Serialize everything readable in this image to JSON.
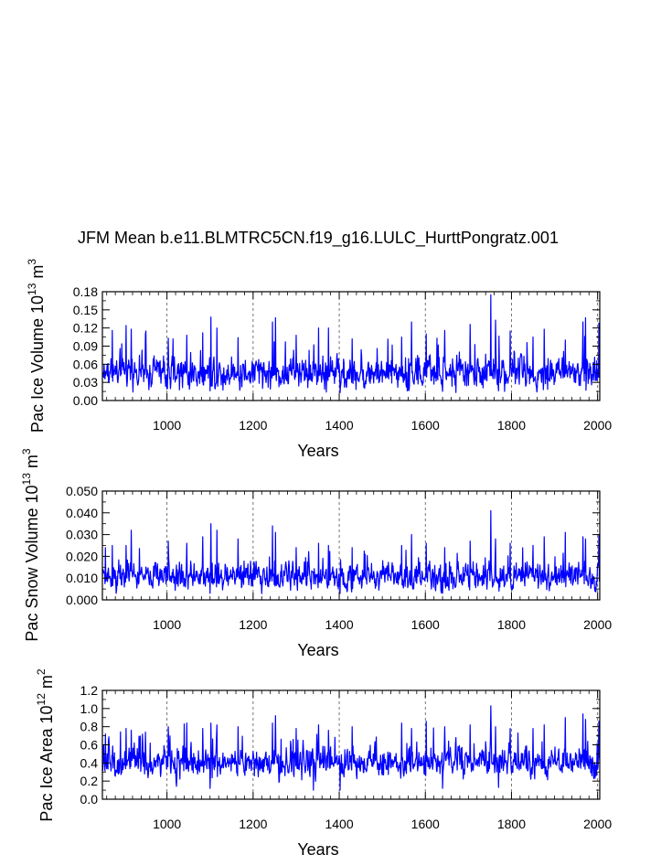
{
  "title": "JFM Mean b.e11.BLMTRC5CN.f19_g16.LULC_HurttPongratz.001",
  "colors": {
    "series": "#0000ff",
    "axis": "#000000",
    "grid": "#555555",
    "background": "#ffffff"
  },
  "chart_data": [
    {
      "type": "line",
      "ylabel": "Pac Ice Volume 10",
      "ylabel_exponent": "13",
      "ylabel_unit": "m",
      "ylabel_unit_exponent": "3",
      "xlabel": "Years",
      "xlim": [
        850,
        2005
      ],
      "ylim": [
        0,
        0.18
      ],
      "xticks": [
        1000,
        1200,
        1400,
        1600,
        1800,
        2000
      ],
      "xtick_labels": [
        "1000",
        "1200",
        "1400",
        "1600",
        "1800",
        "2000"
      ],
      "yticks": [
        0,
        0.03,
        0.06,
        0.09,
        0.12,
        0.15,
        0.18
      ],
      "ytick_labels": [
        "0.00",
        "0.03",
        "0.06",
        "0.09",
        "0.12",
        "0.15",
        "0.18"
      ],
      "vgrid": [
        1000,
        1200,
        1400,
        1600,
        1800,
        2000
      ],
      "series": [
        {
          "name": "Pac Ice Volume",
          "x_start": 850,
          "x_end": 2005,
          "baseline": 0.045,
          "spread": 0.02,
          "min": 0.013,
          "peaks": [
            [
              873,
              0.116
            ],
            [
              905,
              0.124
            ],
            [
              917,
              0.118
            ],
            [
              950,
              0.11
            ],
            [
              1003,
              0.103
            ],
            [
              1046,
              0.108
            ],
            [
              1083,
              0.112
            ],
            [
              1102,
              0.138
            ],
            [
              1116,
              0.12
            ],
            [
              1165,
              0.104
            ],
            [
              1245,
              0.13
            ],
            [
              1252,
              0.137
            ],
            [
              1300,
              0.108
            ],
            [
              1352,
              0.12
            ],
            [
              1375,
              0.12
            ],
            [
              1430,
              0.102
            ],
            [
              1545,
              0.105
            ],
            [
              1568,
              0.13
            ],
            [
              1602,
              0.11
            ],
            [
              1645,
              0.116
            ],
            [
              1704,
              0.126
            ],
            [
              1752,
              0.175
            ],
            [
              1763,
              0.133
            ],
            [
              1797,
              0.115
            ],
            [
              1850,
              0.105
            ],
            [
              1876,
              0.118
            ],
            [
              1925,
              0.1
            ],
            [
              1966,
              0.13
            ],
            [
              1972,
              0.137
            ],
            [
              2003,
              0.128
            ]
          ],
          "dips": [
            [
              1100,
              0.016
            ],
            [
              1370,
              0.014
            ],
            [
              1402,
              0.013
            ],
            [
              1640,
              0.015
            ],
            [
              1770,
              0.016
            ]
          ]
        }
      ]
    },
    {
      "type": "line",
      "ylabel": "Pac Snow Volume 10",
      "ylabel_exponent": "13",
      "ylabel_unit": "m",
      "ylabel_unit_exponent": "3",
      "xlabel": "Years",
      "xlim": [
        850,
        2005
      ],
      "ylim": [
        0,
        0.05
      ],
      "xticks": [
        1000,
        1200,
        1400,
        1600,
        1800,
        2000
      ],
      "xtick_labels": [
        "1000",
        "1200",
        "1400",
        "1600",
        "1800",
        "2000"
      ],
      "yticks": [
        0,
        0.01,
        0.02,
        0.03,
        0.04,
        0.05
      ],
      "ytick_labels": [
        "0.000",
        "0.010",
        "0.020",
        "0.030",
        "0.040",
        "0.050"
      ],
      "vgrid": [
        1000,
        1200,
        1400,
        1600,
        1800,
        2000
      ],
      "series": [
        {
          "name": "Pac Snow Volume",
          "x_start": 850,
          "x_end": 2005,
          "baseline": 0.0105,
          "spread": 0.0045,
          "min": 0.0025,
          "peaks": [
            [
              857,
              0.024
            ],
            [
              873,
              0.025
            ],
            [
              905,
              0.025
            ],
            [
              917,
              0.032
            ],
            [
              1003,
              0.027
            ],
            [
              1046,
              0.026
            ],
            [
              1083,
              0.029
            ],
            [
              1102,
              0.035
            ],
            [
              1116,
              0.032
            ],
            [
              1165,
              0.028
            ],
            [
              1245,
              0.034
            ],
            [
              1252,
              0.031
            ],
            [
              1300,
              0.024
            ],
            [
              1352,
              0.026
            ],
            [
              1375,
              0.025
            ],
            [
              1430,
              0.024
            ],
            [
              1545,
              0.025
            ],
            [
              1568,
              0.03
            ],
            [
              1602,
              0.026
            ],
            [
              1645,
              0.024
            ],
            [
              1704,
              0.027
            ],
            [
              1752,
              0.041
            ],
            [
              1763,
              0.028
            ],
            [
              1797,
              0.026
            ],
            [
              1850,
              0.025
            ],
            [
              1876,
              0.029
            ],
            [
              1925,
              0.031
            ],
            [
              1966,
              0.029
            ],
            [
              1972,
              0.028
            ],
            [
              2003,
              0.03
            ]
          ],
          "dips": [
            [
              1100,
              0.003
            ],
            [
              1402,
              0.003
            ],
            [
              1640,
              0.003
            ]
          ]
        }
      ]
    },
    {
      "type": "line",
      "ylabel": "Pac Ice Area 10",
      "ylabel_exponent": "12",
      "ylabel_unit": "m",
      "ylabel_unit_exponent": "2",
      "xlabel": "Years",
      "xlim": [
        850,
        2005
      ],
      "ylim": [
        0,
        1.2
      ],
      "xticks": [
        1000,
        1200,
        1400,
        1600,
        1800,
        2000
      ],
      "xtick_labels": [
        "1000",
        "1200",
        "1400",
        "1600",
        "1800",
        "2000"
      ],
      "yticks": [
        0,
        0.2,
        0.4,
        0.6,
        0.8,
        1.0,
        1.2
      ],
      "ytick_labels": [
        "0.0",
        "0.2",
        "0.4",
        "0.6",
        "0.8",
        "1.0",
        "1.2"
      ],
      "vgrid": [
        1000,
        1200,
        1400,
        1600,
        1800,
        2000
      ],
      "series": [
        {
          "name": "Pac Ice Area",
          "x_start": 850,
          "x_end": 2005,
          "baseline": 0.4,
          "spread": 0.12,
          "min": 0.1,
          "peaks": [
            [
              857,
              0.72
            ],
            [
              905,
              0.78
            ],
            [
              917,
              0.76
            ],
            [
              950,
              0.74
            ],
            [
              1003,
              0.8
            ],
            [
              1040,
              0.83
            ],
            [
              1046,
              0.84
            ],
            [
              1083,
              0.78
            ],
            [
              1102,
              0.84
            ],
            [
              1116,
              0.82
            ],
            [
              1165,
              0.8
            ],
            [
              1245,
              0.84
            ],
            [
              1252,
              0.92
            ],
            [
              1300,
              0.78
            ],
            [
              1352,
              0.82
            ],
            [
              1375,
              0.76
            ],
            [
              1430,
              0.8
            ],
            [
              1545,
              0.84
            ],
            [
              1568,
              0.78
            ],
            [
              1602,
              0.86
            ],
            [
              1645,
              0.8
            ],
            [
              1704,
              0.82
            ],
            [
              1752,
              1.03
            ],
            [
              1763,
              0.8
            ],
            [
              1797,
              0.78
            ],
            [
              1850,
              0.78
            ],
            [
              1876,
              0.82
            ],
            [
              1925,
              0.9
            ],
            [
              1966,
              0.94
            ],
            [
              1972,
              0.88
            ],
            [
              2003,
              0.86
            ]
          ],
          "dips": [
            [
              1100,
              0.12
            ],
            [
              1340,
              0.1
            ],
            [
              1402,
              0.1
            ],
            [
              1640,
              0.12
            ],
            [
              1770,
              0.13
            ]
          ]
        }
      ]
    }
  ]
}
